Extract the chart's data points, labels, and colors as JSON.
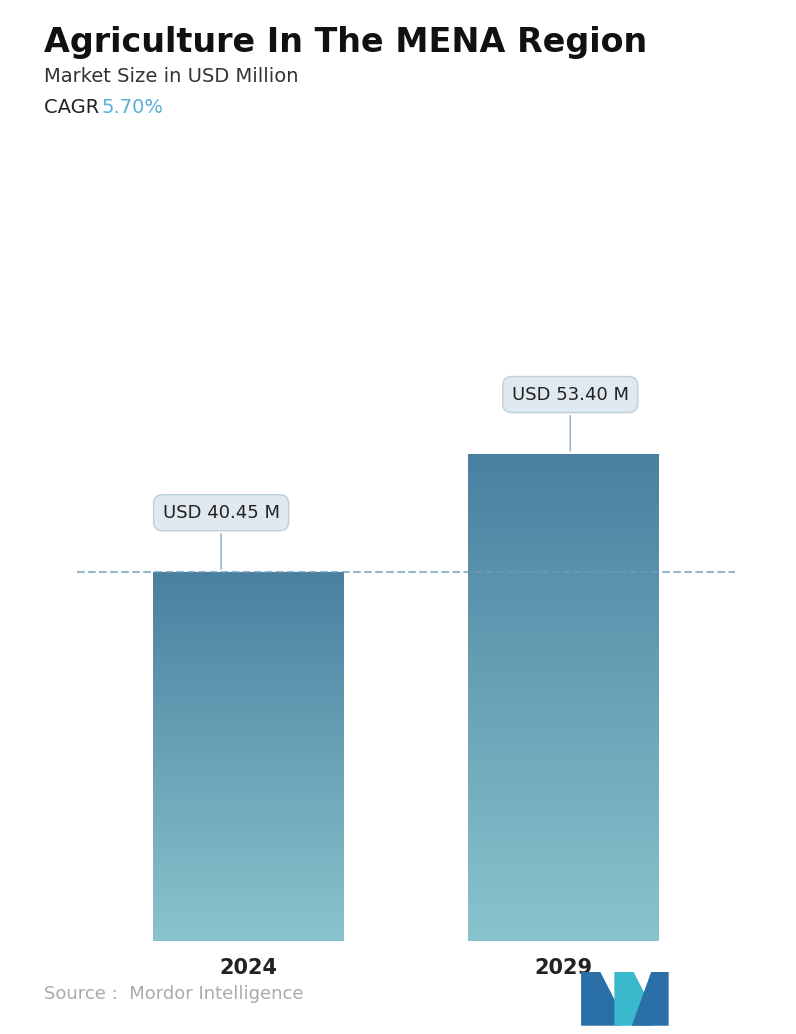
{
  "title": "Agriculture In The MENA Region",
  "subtitle": "Market Size in USD Million",
  "cagr_label": "CAGR ",
  "cagr_value": "5.70%",
  "cagr_color": "#5aafd6",
  "categories": [
    "2024",
    "2029"
  ],
  "values": [
    40.45,
    53.4
  ],
  "labels": [
    "USD 40.45 M",
    "USD 53.40 M"
  ],
  "bar_color_top": "#4a7fa0",
  "bar_color_bottom": "#88c4cc",
  "dashed_line_color": "#6a9ab8",
  "dashed_line_value": 40.45,
  "source_text": "Source :  Mordor Intelligence",
  "source_color": "#aaaaaa",
  "background_color": "#ffffff",
  "title_fontsize": 24,
  "subtitle_fontsize": 14,
  "cagr_fontsize": 14,
  "label_fontsize": 13,
  "tick_fontsize": 15,
  "source_fontsize": 13,
  "ylim": [
    0,
    68
  ],
  "bar_width": 0.28,
  "positions": [
    0.27,
    0.73
  ]
}
